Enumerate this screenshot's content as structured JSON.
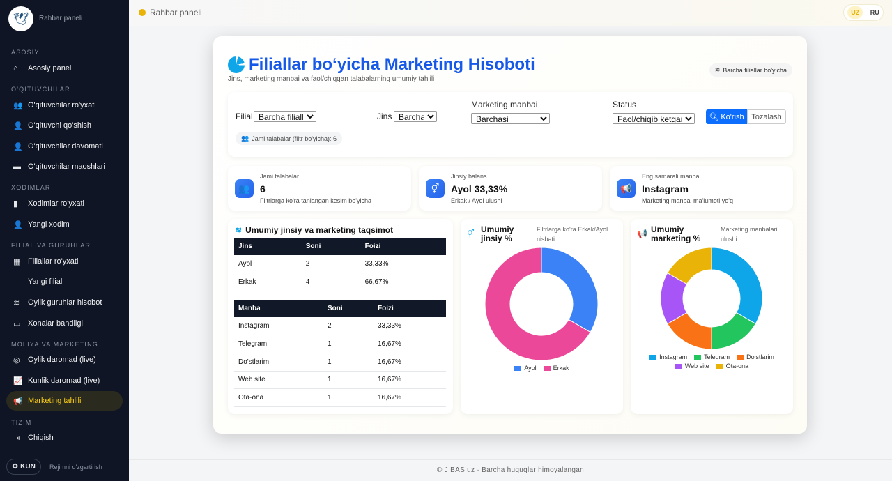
{
  "sidebar": {
    "brand": "Rahbar paneli",
    "sections": [
      "ASOSIY",
      "O'QITUVCHILAR",
      "XODIMLAR",
      "FILIAL VA GURUHLAR",
      "MOLIYA VA MARKETING",
      "TIZIM"
    ],
    "items": [
      "Asosiy panel",
      "O'qituvchilar ro'yxati",
      "O'qituvchi qo'shish",
      "O'qituvchilar davomati",
      "O'qituvchilar maoshlari",
      "Xodimlar ro'yxati",
      "Yangi xodim",
      "Filiallar ro'yxati",
      "Yangi filial",
      "Oylik guruhlar hisobot",
      "Xonalar bandligi",
      "Oylik daromad (live)",
      "Kunlik daromad (live)",
      "Marketing tahlili",
      "Chiqish"
    ],
    "mode_button": "KUN",
    "mode_label": "Rejimni o'zgartirish"
  },
  "topbar": {
    "title": "Rahbar paneli",
    "lang_uz": "UZ",
    "lang_ru": "RU"
  },
  "footer": "© JIBAS.uz · Barcha huquqlar himoyalangan",
  "page": {
    "title": "Filiallar bo‘yicha Marketing Hisoboti",
    "subtitle": "Jins, marketing manbai va faol/chiqqan talabalarning umumiy tahlili",
    "scope_badge": "Barcha filiallar bo'yicha"
  },
  "filters": {
    "filial_label": "Filial",
    "filial_value": "Barcha filiallar",
    "jins_label": "Jins",
    "jins_value": "Barchasi",
    "manba_label": "Marketing manbai",
    "manba_value": "Barchasi",
    "status_label": "Status",
    "status_value": "Faol/chiqib ketgan",
    "search_button": "Ko'rish",
    "clear_button": "Tozalash",
    "total_chip": "Jami talabalar (filtr bo'yicha):  6"
  },
  "stats": [
    {
      "label": "Jami talabalar",
      "value": "6",
      "sub": "Filtrlarga ko'ra tanlangan kesim bo'yicha"
    },
    {
      "label": "Jinsiy balans",
      "value": "Ayol 33,33%",
      "sub": "Erkak / Ayol ulushi"
    },
    {
      "label": "Eng samarali manba",
      "value": "Instagram",
      "sub": "Marketing manbai ma'lumoti yo'q"
    }
  ],
  "tables": {
    "title": "Umumiy jinsiy va marketing taqsimot",
    "gender": {
      "headers": [
        "Jins",
        "Soni",
        "Foizi"
      ],
      "rows": [
        [
          "Ayol",
          "2",
          "33,33%"
        ],
        [
          "Erkak",
          "4",
          "66,67%"
        ]
      ]
    },
    "source": {
      "headers": [
        "Manba",
        "Soni",
        "Foizi"
      ],
      "rows": [
        [
          "Instagram",
          "2",
          "33,33%"
        ],
        [
          "Telegram",
          "1",
          "16,67%"
        ],
        [
          "Do'stlarim",
          "1",
          "16,67%"
        ],
        [
          "Web site",
          "1",
          "16,67%"
        ],
        [
          "Ota-ona",
          "1",
          "16,67%"
        ]
      ]
    }
  },
  "chart_data": [
    {
      "type": "pie",
      "title": "Umumiy jinsiy %",
      "subtitle": "Filtrlarga ko'ra Erkak/Ayol nisbati",
      "categories": [
        "Ayol",
        "Erkak"
      ],
      "values": [
        33.33,
        66.67
      ],
      "colors": [
        "#3b82f6",
        "#ec4899"
      ],
      "legend": "bottom"
    },
    {
      "type": "pie",
      "title": "Umumiy marketing %",
      "subtitle": "Marketing manbalari ulushi",
      "categories": [
        "Instagram",
        "Telegram",
        "Do'stlarim",
        "Web site",
        "Ota-ona"
      ],
      "values": [
        33.33,
        16.67,
        16.67,
        16.67,
        16.67
      ],
      "colors": [
        "#0ea5e9",
        "#22c55e",
        "#f97316",
        "#a855f7",
        "#eab308"
      ],
      "legend": "bottom"
    }
  ]
}
